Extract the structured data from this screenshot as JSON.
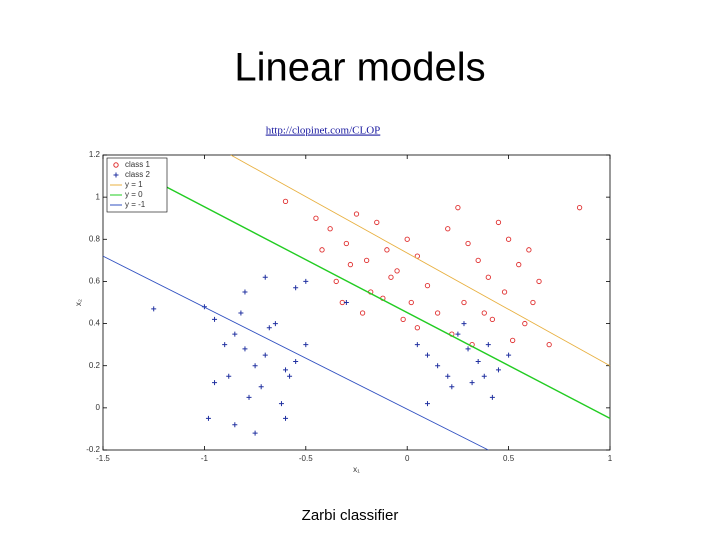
{
  "title": "Linear models",
  "link": "http://clopinet.com/CLOP",
  "caption": "Zarbi classifier",
  "chart_data": {
    "type": "scatter",
    "xlabel": "x₁",
    "ylabel": "x₂",
    "xlim": [
      -1.5,
      1
    ],
    "ylim": [
      -0.2,
      1.2
    ],
    "xticks": [
      -1.5,
      -1,
      -0.5,
      0,
      0.5,
      1
    ],
    "yticks": [
      -0.2,
      0,
      0.2,
      0.4,
      0.6,
      0.8,
      1,
      1.2
    ],
    "legend": "upper left",
    "series": [
      {
        "name": "class 1",
        "color": "#e03030",
        "marker": "circle",
        "x": [
          -0.45,
          -0.38,
          -0.3,
          -0.25,
          -0.2,
          -0.15,
          -0.1,
          -0.05,
          0,
          0.05,
          -0.35,
          -0.28,
          -0.18,
          -0.08,
          0.02,
          0.1,
          -0.42,
          -0.32,
          -0.22,
          -0.12,
          -0.02,
          0.2,
          0.25,
          0.3,
          0.35,
          0.4,
          0.45,
          0.5,
          0.55,
          0.6,
          0.65,
          0.28,
          0.38,
          0.48,
          0.58,
          0.22,
          0.32,
          0.42,
          0.52,
          0.62,
          0.7,
          0.85,
          -0.6,
          0.15,
          0.05
        ],
        "values": [
          0.9,
          0.85,
          0.78,
          0.92,
          0.7,
          0.88,
          0.75,
          0.65,
          0.8,
          0.72,
          0.6,
          0.68,
          0.55,
          0.62,
          0.5,
          0.58,
          0.75,
          0.5,
          0.45,
          0.52,
          0.42,
          0.85,
          0.95,
          0.78,
          0.7,
          0.62,
          0.88,
          0.8,
          0.68,
          0.75,
          0.6,
          0.5,
          0.45,
          0.55,
          0.4,
          0.35,
          0.3,
          0.42,
          0.32,
          0.5,
          0.3,
          0.95,
          0.98,
          0.45,
          0.38
        ]
      },
      {
        "name": "class 2",
        "color": "#2030a0",
        "marker": "plus",
        "x": [
          -1.25,
          -1,
          -0.95,
          -0.9,
          -0.85,
          -0.8,
          -0.75,
          -0.7,
          -0.65,
          -0.6,
          -0.55,
          -0.5,
          -0.95,
          -0.88,
          -0.78,
          -0.72,
          -0.62,
          -0.58,
          -0.82,
          -0.68,
          -0.98,
          -0.85,
          -0.75,
          -0.6,
          -0.8,
          0.05,
          0.1,
          0.15,
          0.2,
          0.25,
          0.3,
          0.35,
          0.4,
          0.45,
          0.5,
          0.22,
          0.32,
          0.42,
          0.28,
          0.38,
          -0.7,
          -0.55,
          -0.3,
          0.1,
          -0.5
        ],
        "values": [
          0.47,
          0.48,
          0.42,
          0.3,
          0.35,
          0.28,
          0.2,
          0.25,
          0.4,
          0.18,
          0.22,
          0.3,
          0.12,
          0.15,
          0.05,
          0.1,
          0.02,
          0.15,
          0.45,
          0.38,
          -0.05,
          -0.08,
          -0.12,
          -0.05,
          0.55,
          0.3,
          0.25,
          0.2,
          0.15,
          0.35,
          0.28,
          0.22,
          0.3,
          0.18,
          0.25,
          0.1,
          0.12,
          0.05,
          0.4,
          0.15,
          0.62,
          0.57,
          0.5,
          0.02,
          0.6
        ]
      },
      {
        "name": "y = 1",
        "color": "#e8b040",
        "marker": "line",
        "x": [
          -0.87,
          1
        ],
        "values": [
          1.2,
          0.2
        ]
      },
      {
        "name": "y = 0",
        "color": "#22cc22",
        "marker": "line",
        "x": [
          -1.35,
          1
        ],
        "values": [
          1.13,
          -0.05
        ]
      },
      {
        "name": "y = -1",
        "color": "#3050c0",
        "marker": "line",
        "x": [
          -1.5,
          0.4
        ],
        "values": [
          0.72,
          -0.2
        ]
      }
    ]
  }
}
